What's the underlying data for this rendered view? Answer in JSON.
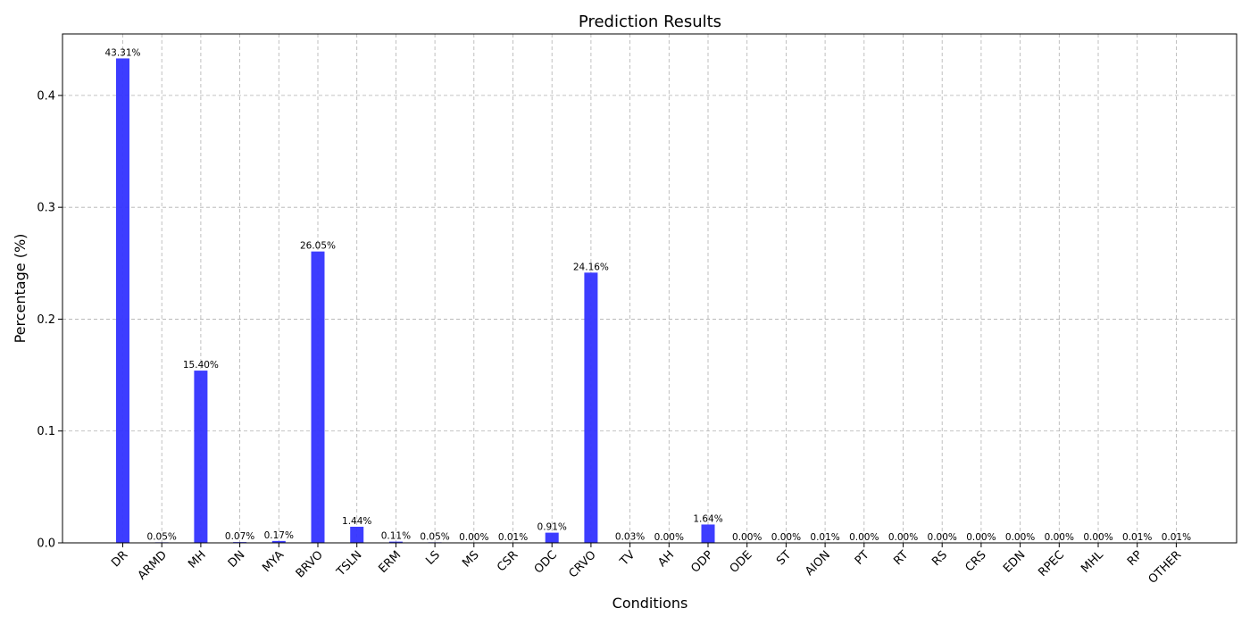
{
  "chart_data": {
    "type": "bar",
    "title": "Prediction Results",
    "xlabel": "Conditions",
    "ylabel": "Percentage (%)",
    "ylim": [
      0,
      0.455
    ],
    "yticks": [
      0.0,
      0.1,
      0.2,
      0.3,
      0.4
    ],
    "ytick_labels": [
      "0.0",
      "0.1",
      "0.2",
      "0.3",
      "0.4"
    ],
    "grid": true,
    "bar_color": "#3333ff",
    "categories": [
      "DR",
      "ARMD",
      "MH",
      "DN",
      "MYA",
      "BRVO",
      "TSLN",
      "ERM",
      "LS",
      "MS",
      "CSR",
      "ODC",
      "CRVO",
      "TV",
      "AH",
      "ODP",
      "ODE",
      "ST",
      "AION",
      "PT",
      "RT",
      "RS",
      "CRS",
      "EDN",
      "RPEC",
      "MHL",
      "RP",
      "OTHER"
    ],
    "values": [
      0.4331,
      0.0005,
      0.154,
      0.0007,
      0.0017,
      0.2605,
      0.0144,
      0.0011,
      0.0005,
      0.0,
      0.0001,
      0.0091,
      0.2416,
      0.0003,
      0.0,
      0.0164,
      0.0,
      0.0,
      0.0001,
      0.0,
      0.0,
      0.0,
      0.0,
      0.0,
      0.0,
      0.0,
      0.0001,
      0.0001
    ],
    "value_labels": [
      "43.31%",
      "0.05%",
      "15.40%",
      "0.07%",
      "0.17%",
      "26.05%",
      "1.44%",
      "0.11%",
      "0.05%",
      "0.00%",
      "0.01%",
      "0.91%",
      "24.16%",
      "0.03%",
      "0.00%",
      "1.64%",
      "0.00%",
      "0.00%",
      "0.01%",
      "0.00%",
      "0.00%",
      "0.00%",
      "0.00%",
      "0.00%",
      "0.00%",
      "0.00%",
      "0.01%",
      "0.01%"
    ]
  }
}
